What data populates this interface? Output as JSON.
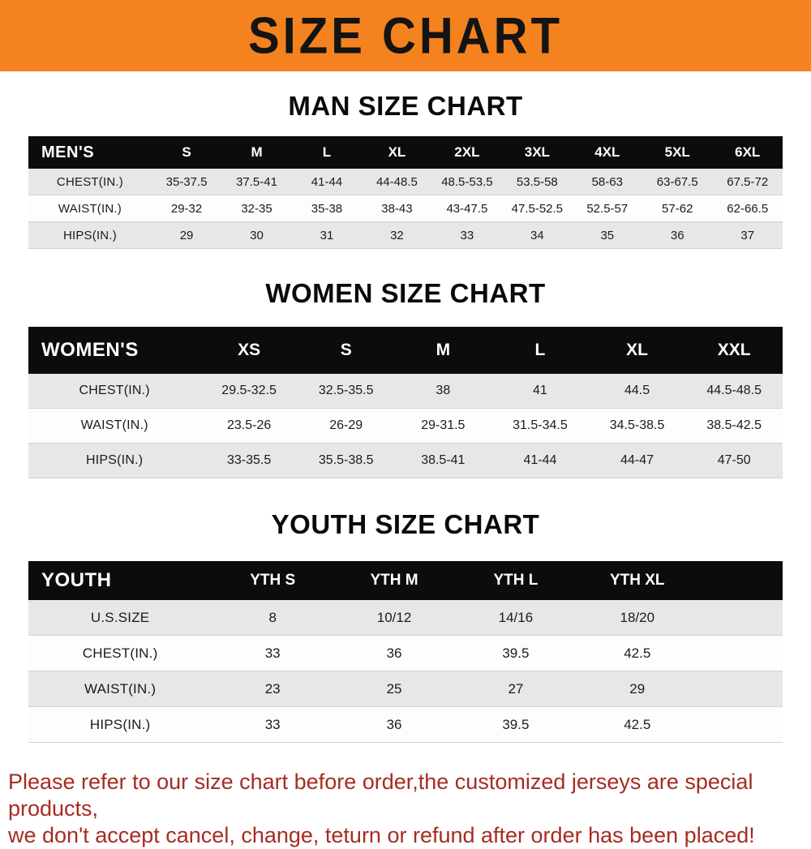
{
  "banner": {
    "title": "SIZE CHART",
    "bg_color": "#F4821F",
    "text_color": "#141414"
  },
  "sections": [
    {
      "id": "men",
      "title": "MAN SIZE CHART",
      "corner_label": "MEN'S",
      "columns": [
        "S",
        "M",
        "L",
        "XL",
        "2XL",
        "3XL",
        "4XL",
        "5XL",
        "6XL"
      ],
      "rows": [
        {
          "label": "CHEST(IN.)",
          "values": [
            "35-37.5",
            "37.5-41",
            "41-44",
            "44-48.5",
            "48.5-53.5",
            "53.5-58",
            "58-63",
            "63-67.5",
            "67.5-72"
          ]
        },
        {
          "label": "WAIST(IN.)",
          "values": [
            "29-32",
            "32-35",
            "35-38",
            "38-43",
            "43-47.5",
            "47.5-52.5",
            "52.5-57",
            "57-62",
            "62-66.5"
          ]
        },
        {
          "label": "HIPS(IN.)",
          "values": [
            "29",
            "30",
            "31",
            "32",
            "33",
            "34",
            "35",
            "36",
            "37"
          ]
        }
      ]
    },
    {
      "id": "women",
      "title": "WOMEN SIZE CHART",
      "corner_label": "WOMEN'S",
      "columns": [
        "XS",
        "S",
        "M",
        "L",
        "XL",
        "XXL"
      ],
      "rows": [
        {
          "label": "CHEST(IN.)",
          "values": [
            "29.5-32.5",
            "32.5-35.5",
            "38",
            "41",
            "44.5",
            "44.5-48.5"
          ]
        },
        {
          "label": "WAIST(IN.)",
          "values": [
            "23.5-26",
            "26-29",
            "29-31.5",
            "31.5-34.5",
            "34.5-38.5",
            "38.5-42.5"
          ]
        },
        {
          "label": "HIPS(IN.)",
          "values": [
            "33-35.5",
            "35.5-38.5",
            "38.5-41",
            "41-44",
            "44-47",
            "47-50"
          ]
        }
      ]
    },
    {
      "id": "youth",
      "title": "YOUTH SIZE CHART",
      "corner_label": "YOUTH",
      "columns": [
        "YTH S",
        "YTH M",
        "YTH L",
        "YTH XL"
      ],
      "rows": [
        {
          "label": "U.S.SIZE",
          "values": [
            "8",
            "10/12",
            "14/16",
            "18/20"
          ]
        },
        {
          "label": "CHEST(IN.)",
          "values": [
            "33",
            "36",
            "39.5",
            "42.5"
          ]
        },
        {
          "label": "WAIST(IN.)",
          "values": [
            "23",
            "25",
            "27",
            "29"
          ]
        },
        {
          "label": "HIPS(IN.)",
          "values": [
            "33",
            "36",
            "39.5",
            "42.5"
          ]
        }
      ]
    }
  ],
  "footer": {
    "lines": [
      "Please refer to our size chart before order,the customized jerseys are special products,",
      "we don't accept cancel, change, teturn or refund after order has been placed!"
    ],
    "text_color": "#A62C21"
  }
}
